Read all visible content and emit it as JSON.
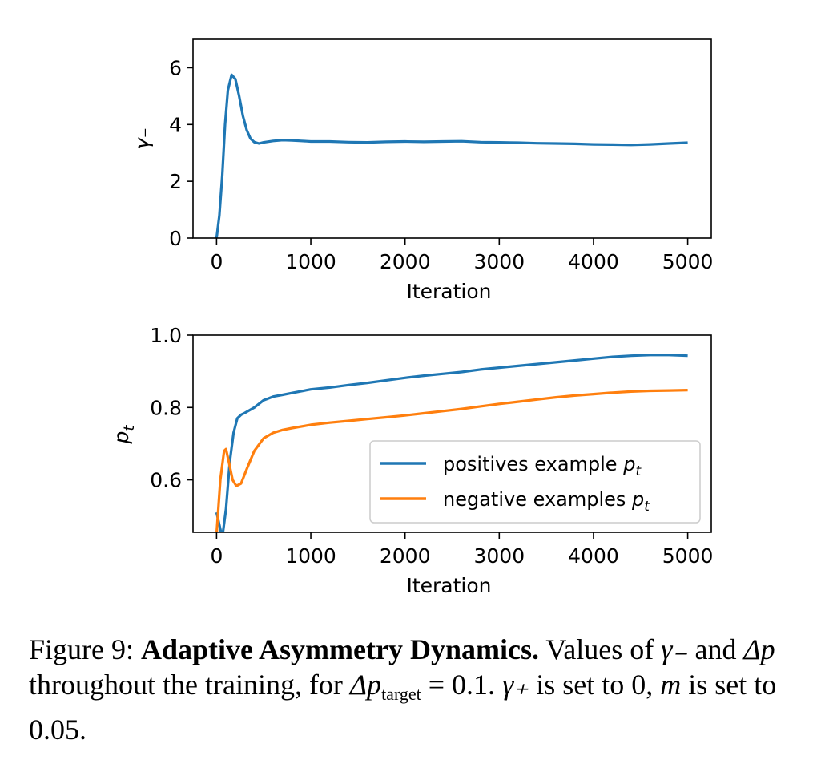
{
  "chart_data": [
    {
      "type": "line",
      "xlabel": "Iteration",
      "ylabel": "γ₋",
      "xlim": [
        -250,
        5250
      ],
      "ylim": [
        0,
        7
      ],
      "xticks": [
        0,
        1000,
        2000,
        3000,
        4000,
        5000
      ],
      "yticks": [
        0,
        2,
        4,
        6
      ],
      "grid": false,
      "series": [
        {
          "color": "#1f77b4",
          "x": [
            0,
            30,
            60,
            90,
            120,
            160,
            200,
            240,
            280,
            320,
            360,
            400,
            450,
            500,
            600,
            700,
            800,
            900,
            1000,
            1200,
            1400,
            1600,
            1800,
            2000,
            2200,
            2400,
            2600,
            2800,
            3000,
            3200,
            3400,
            3600,
            3800,
            4000,
            4200,
            4400,
            4600,
            4800,
            5000
          ],
          "y": [
            0,
            0.8,
            2.2,
            4.0,
            5.2,
            5.75,
            5.6,
            5.0,
            4.3,
            3.8,
            3.5,
            3.38,
            3.33,
            3.37,
            3.42,
            3.45,
            3.44,
            3.42,
            3.4,
            3.4,
            3.38,
            3.37,
            3.39,
            3.4,
            3.39,
            3.4,
            3.41,
            3.38,
            3.37,
            3.36,
            3.34,
            3.33,
            3.32,
            3.3,
            3.29,
            3.28,
            3.3,
            3.33,
            3.36
          ]
        }
      ]
    },
    {
      "type": "line",
      "xlabel": "Iteration",
      "ylabel": "p_t",
      "xlim": [
        -250,
        5250
      ],
      "ylim": [
        0.455,
        1.0
      ],
      "xticks": [
        0,
        1000,
        2000,
        3000,
        4000,
        5000
      ],
      "yticks": [
        0.6,
        0.8,
        1.0
      ],
      "grid": false,
      "legend": "lower-right",
      "series": [
        {
          "name": "positives example p_t",
          "color": "#1f77b4",
          "x": [
            0,
            60,
            100,
            140,
            180,
            220,
            260,
            300,
            400,
            500,
            600,
            700,
            800,
            1000,
            1200,
            1400,
            1600,
            1800,
            2000,
            2200,
            2400,
            2600,
            2800,
            3000,
            3200,
            3400,
            3600,
            3800,
            4000,
            4200,
            4400,
            4600,
            4800,
            5000
          ],
          "y": [
            0.51,
            0.44,
            0.52,
            0.65,
            0.73,
            0.77,
            0.78,
            0.785,
            0.8,
            0.82,
            0.83,
            0.835,
            0.84,
            0.85,
            0.855,
            0.862,
            0.868,
            0.875,
            0.882,
            0.888,
            0.893,
            0.898,
            0.905,
            0.91,
            0.915,
            0.92,
            0.925,
            0.93,
            0.935,
            0.94,
            0.943,
            0.945,
            0.945,
            0.943
          ]
        },
        {
          "name": "negative examples p_t",
          "color": "#ff7f0e",
          "x": [
            0,
            40,
            80,
            100,
            130,
            170,
            210,
            260,
            320,
            400,
            500,
            600,
            700,
            800,
            1000,
            1200,
            1400,
            1600,
            1800,
            2000,
            2200,
            2400,
            2600,
            2800,
            3000,
            3200,
            3400,
            3600,
            3800,
            4000,
            4200,
            4400,
            4600,
            4800,
            5000
          ],
          "y": [
            0.45,
            0.6,
            0.68,
            0.685,
            0.65,
            0.6,
            0.583,
            0.59,
            0.63,
            0.68,
            0.715,
            0.73,
            0.738,
            0.743,
            0.752,
            0.758,
            0.763,
            0.768,
            0.773,
            0.778,
            0.784,
            0.79,
            0.796,
            0.803,
            0.81,
            0.816,
            0.822,
            0.828,
            0.833,
            0.837,
            0.841,
            0.844,
            0.846,
            0.847,
            0.848
          ]
        }
      ]
    }
  ],
  "caption": {
    "figure_label": "Figure 9:",
    "bold_title": "Adaptive Asymmetry Dynamics.",
    "t1": "Values of",
    "gamma_minus": "γ₋",
    "t2": "and",
    "delta_p": "Δp",
    "t3": "throughout the training, for",
    "delta_p_target": "Δp",
    "target_sub": "target",
    "eq_value": "= 0.1.",
    "gamma_plus": "γ₊",
    "t4": "is set to 0,",
    "m": "m",
    "t5": "is set to",
    "m_value": "0.05",
    "t6": "."
  }
}
